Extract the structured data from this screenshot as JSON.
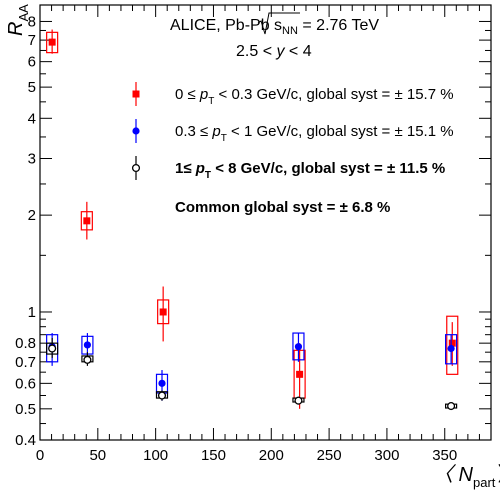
{
  "chart_data": {
    "type": "scatter",
    "yscale": "log",
    "xlim": [
      0,
      390
    ],
    "ylim": [
      0.4,
      9
    ],
    "xlabel_main": "〈 N",
    "xlabel_sub": "part",
    "xlabel_close": "〉",
    "ylabel_main": "R",
    "ylabel_sub": "AA",
    "x_ticks": [
      0,
      50,
      100,
      150,
      200,
      250,
      300,
      350
    ],
    "x_tick_labels": [
      "0",
      "50",
      "100",
      "150",
      "200",
      "250",
      "300",
      "350"
    ],
    "y_ticks": [
      0.4,
      0.5,
      0.6,
      0.7,
      0.8,
      1,
      2,
      3,
      4,
      5,
      6,
      7,
      8
    ],
    "y_tick_labels": [
      "0.4",
      "0.5",
      "0.6",
      "0.7",
      "0.8",
      "1",
      "2",
      "3",
      "4",
      "5",
      "6",
      "7",
      "8"
    ],
    "title_line1_pre": "ALICE, Pb-Pb ",
    "title_sqrt": "s",
    "title_sqrt_sub": "NN",
    "title_line1_post": " = 2.76 TeV",
    "title_line2_pre": "2.5 < ",
    "title_line2_var": "y",
    "title_line2_post": " < 4",
    "legend_placement": "top-right",
    "series": [
      {
        "pre": "0 ≤ ",
        "var": "p",
        "sub": "T",
        "post": " < 0.3 GeV/c, global syst = ± 15.7 %",
        "color": "#ff0000",
        "marker": "filled-square",
        "bold": false,
        "points": [
          {
            "x": 10.5,
            "y": 6.9,
            "stat": [
              6.35,
              7.55
            ],
            "syst": [
              6.4,
              7.4
            ]
          },
          {
            "x": 40.5,
            "y": 1.92,
            "stat": [
              1.68,
              2.2
            ],
            "syst": [
              1.8,
              2.05
            ]
          },
          {
            "x": 106.5,
            "y": 1.0,
            "stat": [
              0.81,
              1.2
            ],
            "syst": [
              0.92,
              1.09
            ]
          },
          {
            "x": 224.5,
            "y": 0.64,
            "stat": [
              0.5,
              0.8
            ],
            "syst": [
              0.54,
              0.76
            ]
          },
          {
            "x": 356.5,
            "y": 0.8,
            "stat": [
              0.68,
              0.93
            ],
            "syst": [
              0.64,
              0.97
            ]
          }
        ]
      },
      {
        "pre": "0.3 ≤ ",
        "var": "p",
        "sub": "T",
        "post": " < 1 GeV/c, global syst = ± 15.1 %",
        "color": "#0000ff",
        "marker": "filled-circle",
        "bold": false,
        "points": [
          {
            "x": 10.5,
            "y": 0.78,
            "stat": [
              0.68,
              0.86
            ],
            "syst": [
              0.7,
              0.85
            ]
          },
          {
            "x": 41.0,
            "y": 0.79,
            "stat": [
              0.7,
              0.86
            ],
            "syst": [
              0.74,
              0.84
            ]
          },
          {
            "x": 105.5,
            "y": 0.6,
            "stat": [
              0.53,
              0.66
            ],
            "syst": [
              0.56,
              0.64
            ]
          },
          {
            "x": 223.5,
            "y": 0.78,
            "stat": [
              0.7,
              0.86
            ],
            "syst": [
              0.71,
              0.86
            ]
          },
          {
            "x": 355.5,
            "y": 0.77,
            "stat": [
              0.69,
              0.85
            ],
            "syst": [
              0.69,
              0.85
            ]
          }
        ]
      },
      {
        "pre": "1≤ ",
        "var": "p",
        "sub": "T",
        "post": " < 8 GeV/c, global syst = ± 11.5 %",
        "color": "#000000",
        "marker": "open-circle",
        "bold": true,
        "points": [
          {
            "x": 10.5,
            "y": 0.77,
            "stat": [
              0.72,
              0.83
            ],
            "syst": [
              0.74,
              0.8
            ]
          },
          {
            "x": 41.0,
            "y": 0.71,
            "stat": [
              0.68,
              0.75
            ],
            "syst": [
              0.7,
              0.73
            ]
          },
          {
            "x": 105.5,
            "y": 0.55,
            "stat": [
              0.53,
              0.57
            ],
            "syst": [
              0.54,
              0.565
            ]
          },
          {
            "x": 223.5,
            "y": 0.53,
            "stat": [
              0.52,
              0.545
            ],
            "syst": [
              0.525,
              0.54
            ]
          },
          {
            "x": 355.5,
            "y": 0.51,
            "stat": [
              0.5,
              0.52
            ],
            "syst": [
              0.503,
              0.517
            ]
          }
        ]
      }
    ],
    "common_syst_text": "Common global syst = ± 6.8 %"
  }
}
